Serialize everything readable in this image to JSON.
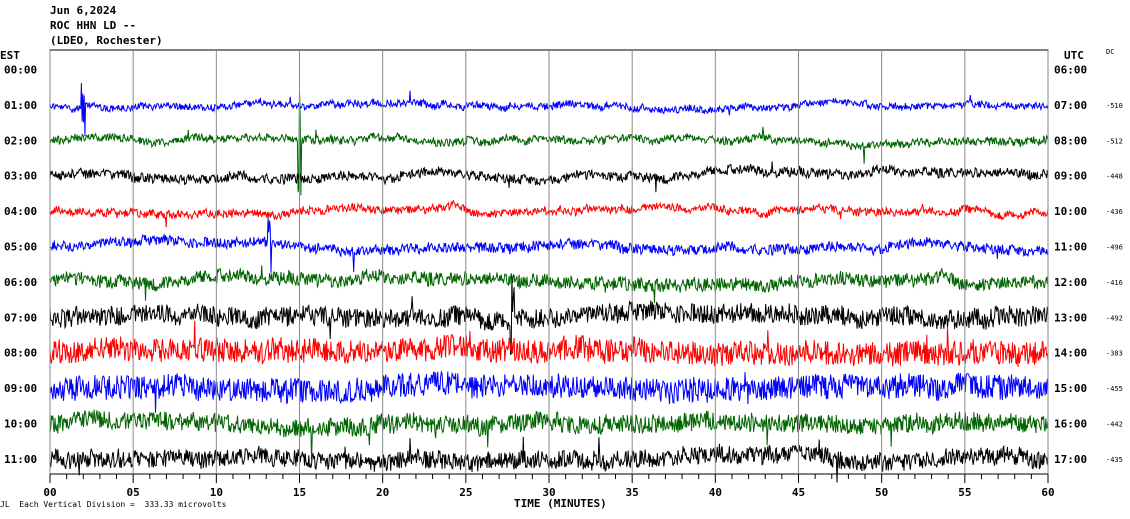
{
  "header": {
    "date": "Jun 6,2024",
    "station": "ROC HHN LD --",
    "network": "(LDEO, Rochester)"
  },
  "left_zone_label": "EST",
  "right_zone_label": "UTC",
  "dc_label": "DC",
  "xlabel": "TIME (MINUTES)",
  "footer_note": "Each Vertical Division =  333.33 microvolts",
  "footer_mark": "JL",
  "chart_data": {
    "type": "line",
    "title": "",
    "xlabel": "TIME (MINUTES)",
    "xlim": [
      0,
      60
    ],
    "x_ticks": [
      0,
      5,
      10,
      15,
      20,
      25,
      30,
      35,
      40,
      45,
      50,
      55,
      60
    ],
    "x_tick_labels": [
      "00",
      "05",
      "10",
      "15",
      "20",
      "25",
      "30",
      "35",
      "40",
      "45",
      "50",
      "55",
      "60"
    ],
    "grid": true,
    "trace_colors": [
      "#ff0000",
      "#0000ff",
      "#006400",
      "#000000"
    ],
    "rows": [
      {
        "est": "00:00",
        "utc": "06:00",
        "dc": "",
        "amplitude": 0
      },
      {
        "est": "01:00",
        "utc": "07:00",
        "dc": "-510",
        "amplitude": 0.18
      },
      {
        "est": "02:00",
        "utc": "08:00",
        "dc": "-512",
        "amplitude": 0.2
      },
      {
        "est": "03:00",
        "utc": "09:00",
        "dc": "-448",
        "amplitude": 0.24
      },
      {
        "est": "04:00",
        "utc": "10:00",
        "dc": "-436",
        "amplitude": 0.2
      },
      {
        "est": "05:00",
        "utc": "11:00",
        "dc": "-496",
        "amplitude": 0.26
      },
      {
        "est": "06:00",
        "utc": "12:00",
        "dc": "-416",
        "amplitude": 0.34
      },
      {
        "est": "07:00",
        "utc": "13:00",
        "dc": "-492",
        "amplitude": 0.5
      },
      {
        "est": "08:00",
        "utc": "14:00",
        "dc": "-383",
        "amplitude": 0.62
      },
      {
        "est": "09:00",
        "utc": "15:00",
        "dc": "-455",
        "amplitude": 0.62
      },
      {
        "est": "10:00",
        "utc": "16:00",
        "dc": "-442",
        "amplitude": 0.48
      },
      {
        "est": "11:00",
        "utc": "17:00",
        "dc": "-435",
        "amplitude": 0.46
      }
    ],
    "events": [
      {
        "row": 1,
        "minute": 2.0,
        "amplitude": 1.8
      },
      {
        "row": 2,
        "minute": 15.0,
        "amplitude": 3.6
      },
      {
        "row": 5,
        "minute": 13.2,
        "amplitude": 1.6
      },
      {
        "row": 7,
        "minute": 27.8,
        "amplitude": 2.2
      }
    ]
  }
}
